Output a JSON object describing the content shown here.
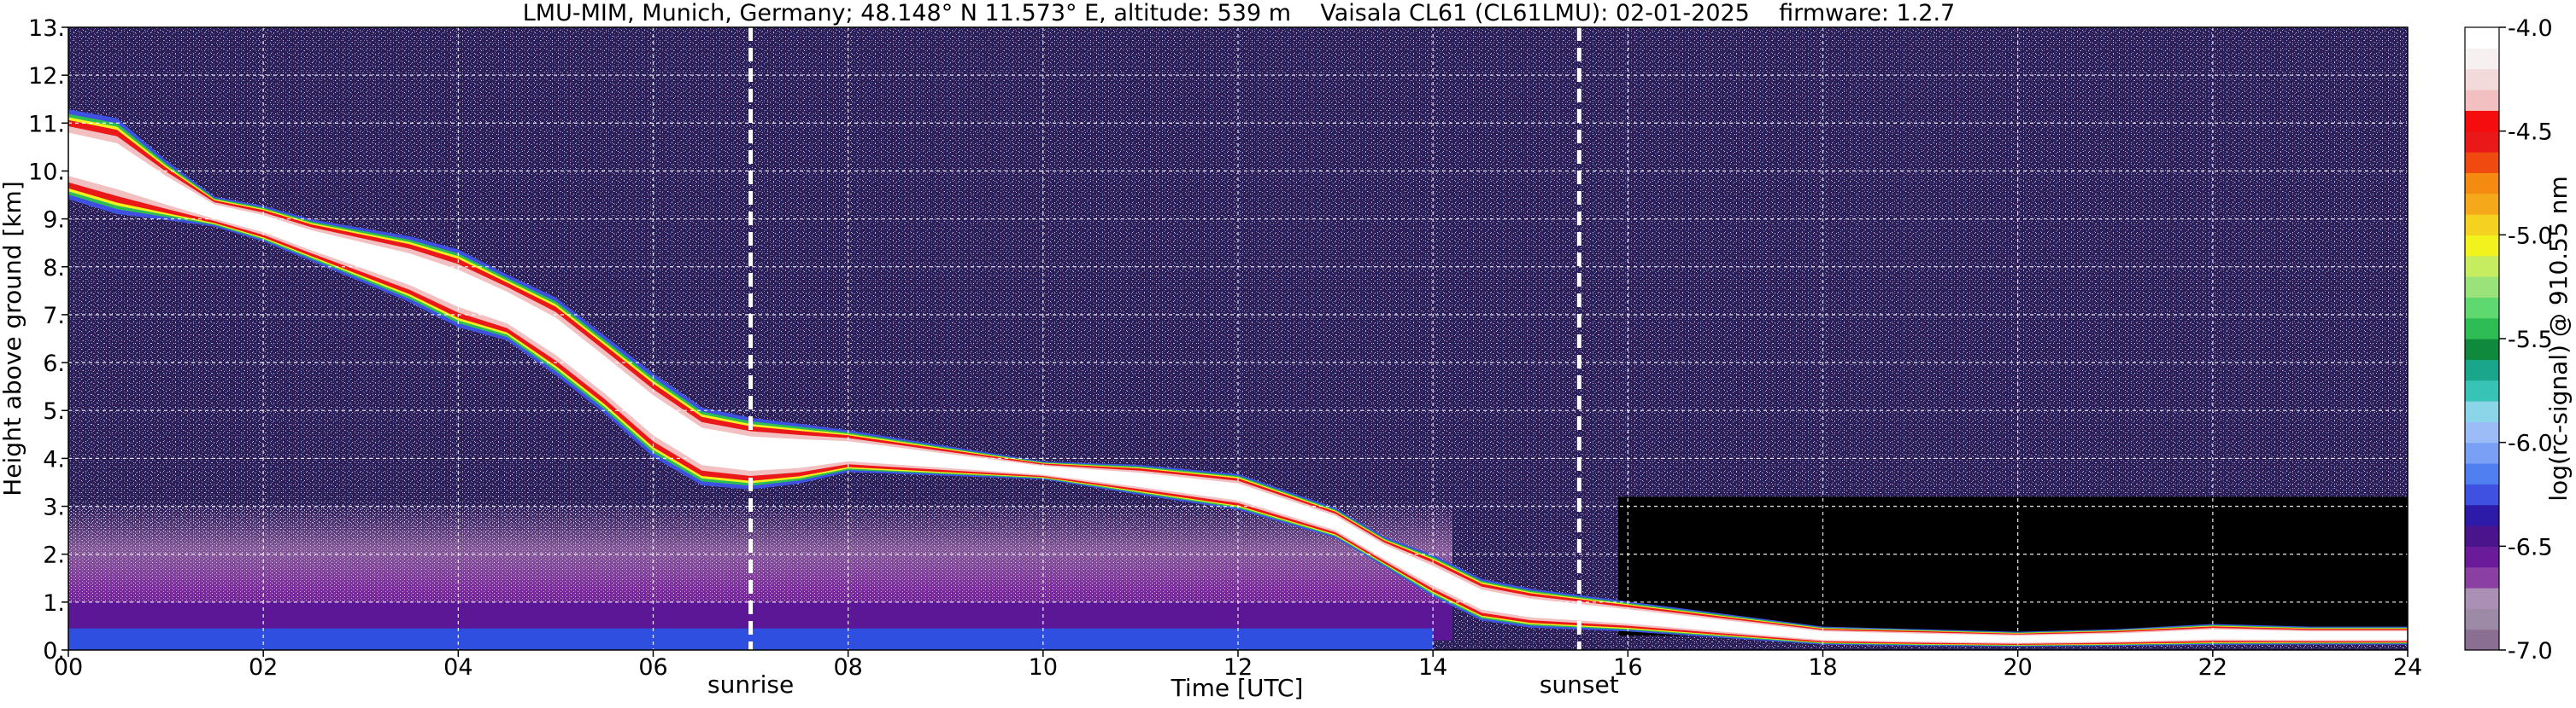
{
  "chart_data": {
    "type": "heatmap",
    "title": "LMU-MIM, Munich, Germany; 48.148° N 11.573° E, altitude: 539 m    Vaisala CL61 (CL61LMU): 02-01-2025    firmware: 1.2.7",
    "xlabel": "Time [UTC]",
    "ylabel": "Height above ground [km]",
    "xlim": [
      0,
      24
    ],
    "ylim": [
      0,
      13
    ],
    "x_ticks": [
      "00",
      "02",
      "04",
      "06",
      "08",
      "10",
      "12",
      "14",
      "16",
      "18",
      "20",
      "22",
      "24"
    ],
    "x_tick_values": [
      0,
      2,
      4,
      6,
      8,
      10,
      12,
      14,
      16,
      18,
      20,
      22,
      24
    ],
    "y_ticks": [
      "0.",
      "1.",
      "2.",
      "3.",
      "4.",
      "5.",
      "6.",
      "7.",
      "8.",
      "9.",
      "10.",
      "11.",
      "12.",
      "13."
    ],
    "y_tick_values": [
      0,
      1,
      2,
      3,
      4,
      5,
      6,
      7,
      8,
      9,
      10,
      11,
      12,
      13
    ],
    "grid": true,
    "markers": [
      {
        "label": "sunrise",
        "x": 7.0
      },
      {
        "label": "sunset",
        "x": 15.5
      }
    ],
    "colorbar": {
      "label": "log(rc-signal) @ 910.55 nm",
      "ticks": [
        "-4.0",
        "-4.5",
        "-5.0",
        "-5.5",
        "-6.0",
        "-6.5",
        "-7.0"
      ],
      "tick_values": [
        -4.0,
        -4.5,
        -5.0,
        -5.5,
        -6.0,
        -6.5,
        -7.0
      ],
      "range": [
        -7.0,
        -4.0
      ],
      "colors": [
        "#8a6f93",
        "#9d8aa6",
        "#aa90b5",
        "#8a3fa3",
        "#6a1b9a",
        "#4a148c",
        "#2e1aa8",
        "#3f51e0",
        "#4f7ff0",
        "#7aa0f5",
        "#9cbcf8",
        "#8ad6e8",
        "#37c3b5",
        "#1aa68a",
        "#0f8a3c",
        "#2ebd55",
        "#5fd870",
        "#9ae37a",
        "#c6ec60",
        "#f2f21e",
        "#f5d220",
        "#f5a81a",
        "#f58a10",
        "#f04a10",
        "#ea1818",
        "#f50c0c",
        "#f2c0c0",
        "#f3dada",
        "#f7f0f0",
        "#ffffff"
      ]
    },
    "layer": {
      "name": "cloud layer core",
      "top_edge": [
        [
          0,
          11.1
        ],
        [
          0.5,
          10.9
        ],
        [
          1,
          10.1
        ],
        [
          1.5,
          9.4
        ],
        [
          2,
          9.2
        ],
        [
          2.5,
          8.9
        ],
        [
          3,
          8.7
        ],
        [
          3.5,
          8.5
        ],
        [
          4,
          8.2
        ],
        [
          4.5,
          7.7
        ],
        [
          5,
          7.2
        ],
        [
          5.5,
          6.4
        ],
        [
          6,
          5.6
        ],
        [
          6.5,
          4.9
        ],
        [
          7,
          4.7
        ],
        [
          7.5,
          4.6
        ],
        [
          8,
          4.5
        ],
        [
          9,
          4.2
        ],
        [
          10,
          3.9
        ],
        [
          11,
          3.8
        ],
        [
          12,
          3.6
        ],
        [
          13,
          2.9
        ],
        [
          13.5,
          2.3
        ],
        [
          14,
          1.9
        ],
        [
          14.5,
          1.4
        ],
        [
          15,
          1.2
        ],
        [
          16,
          0.95
        ],
        [
          17,
          0.7
        ],
        [
          18,
          0.45
        ],
        [
          19,
          0.4
        ],
        [
          20,
          0.35
        ],
        [
          21,
          0.4
        ],
        [
          22,
          0.5
        ],
        [
          23,
          0.45
        ],
        [
          24,
          0.45
        ]
      ],
      "bottom_edge": [
        [
          0,
          9.6
        ],
        [
          0.5,
          9.3
        ],
        [
          1,
          9.1
        ],
        [
          1.5,
          8.9
        ],
        [
          2,
          8.6
        ],
        [
          2.5,
          8.2
        ],
        [
          3,
          7.8
        ],
        [
          3.5,
          7.4
        ],
        [
          4,
          6.9
        ],
        [
          4.5,
          6.6
        ],
        [
          5,
          5.9
        ],
        [
          5.5,
          5.1
        ],
        [
          6,
          4.2
        ],
        [
          6.5,
          3.6
        ],
        [
          7,
          3.5
        ],
        [
          7.5,
          3.6
        ],
        [
          8,
          3.8
        ],
        [
          9,
          3.7
        ],
        [
          10,
          3.6
        ],
        [
          11,
          3.3
        ],
        [
          12,
          3.0
        ],
        [
          13,
          2.4
        ],
        [
          13.5,
          1.8
        ],
        [
          14,
          1.2
        ],
        [
          14.5,
          0.7
        ],
        [
          15,
          0.55
        ],
        [
          16,
          0.45
        ],
        [
          17,
          0.3
        ],
        [
          18,
          0.15
        ],
        [
          19,
          0.12
        ],
        [
          20,
          0.1
        ],
        [
          21,
          0.12
        ],
        [
          22,
          0.15
        ],
        [
          23,
          0.15
        ],
        [
          24,
          0.15
        ]
      ]
    }
  }
}
